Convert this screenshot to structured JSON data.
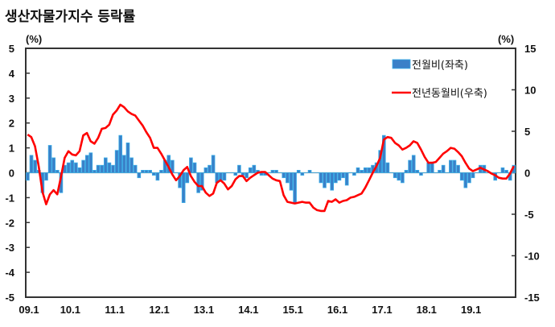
{
  "title": "생산자물가지수 등락률",
  "chart_data": {
    "type": "bar+line",
    "title": "생산자물가지수 등락률",
    "left_unit": "(%)",
    "right_unit": "(%)",
    "left_ylim": [
      -5,
      5
    ],
    "right_ylim": [
      -15,
      15
    ],
    "left_ticks": [
      "5",
      "4",
      "3",
      "2",
      "1",
      "0",
      "-1",
      "-2",
      "-3",
      "-4",
      "-5"
    ],
    "right_ticks": [
      "15",
      "10",
      "5",
      "0",
      "-5",
      "-10",
      "-15"
    ],
    "x_tick_labels": [
      "09.1",
      "10.1",
      "11.1",
      "12.1",
      "13.1",
      "14.1",
      "15.1",
      "16.1",
      "17.1",
      "18.1",
      "19.1"
    ],
    "start": "2009.1",
    "months": 132,
    "legend_position": "top-right",
    "series": [
      {
        "name": "전월비(좌축)",
        "type": "bar",
        "axis": "left",
        "color": "#3a80c8",
        "values": [
          -0.3,
          0.7,
          0.5,
          0.1,
          -0.8,
          -0.3,
          1.1,
          0.6,
          0.1,
          -0.8,
          0.3,
          0.4,
          0.5,
          0.4,
          0.2,
          0.5,
          0.7,
          0.8,
          0.1,
          0.3,
          0.3,
          0.6,
          0.4,
          0.3,
          0.9,
          1.5,
          0.7,
          1.2,
          0.6,
          0.3,
          -0.2,
          0.1,
          0.1,
          0.1,
          -0.1,
          -0.3,
          0.1,
          0.5,
          0.7,
          0.5,
          0.0,
          -0.6,
          -1.2,
          -0.4,
          0.6,
          0.4,
          -0.8,
          -0.7,
          0.2,
          0.3,
          0.7,
          -0.4,
          -0.3,
          -0.3,
          0.0,
          0.0,
          -0.1,
          0.3,
          -0.1,
          -0.2,
          0.2,
          0.3,
          0.1,
          -0.1,
          -0.1,
          0.0,
          0.1,
          0.1,
          0.0,
          -0.2,
          -0.4,
          -0.7,
          -1.2,
          0.1,
          -0.1,
          0.0,
          0.1,
          0.0,
          0.0,
          -0.4,
          -0.6,
          -0.4,
          -0.7,
          -0.4,
          -0.3,
          -0.2,
          -0.5,
          0.0,
          -0.1,
          0.2,
          0.1,
          0.2,
          0.2,
          0.3,
          0.4,
          0.9,
          1.5,
          0.4,
          0.0,
          -0.2,
          -0.3,
          -0.4,
          0.1,
          0.5,
          0.7,
          0.1,
          -0.1,
          0.0,
          0.4,
          0.4,
          0.0,
          0.1,
          0.3,
          0.0,
          0.5,
          0.5,
          0.3,
          -0.3,
          -0.6,
          -0.4,
          -0.2,
          0.0,
          0.3,
          0.3,
          0.0,
          0.0,
          -0.3,
          0.0,
          0.2,
          0.1,
          -0.3,
          0.3
        ]
      },
      {
        "name": "전년동월비(우축)",
        "type": "line",
        "axis": "right",
        "color": "#ff0000",
        "values": [
          4.6,
          4.3,
          3.2,
          0.8,
          -2.3,
          -3.8,
          -2.6,
          -2.1,
          -2.6,
          -0.5,
          1.8,
          2.6,
          2.2,
          2.1,
          2.6,
          4.5,
          4.8,
          3.8,
          3.5,
          4.2,
          5.3,
          5.4,
          5.8,
          7.0,
          7.5,
          8.2,
          7.9,
          7.4,
          7.1,
          6.9,
          6.3,
          5.7,
          4.9,
          4.2,
          3.0,
          3.0,
          2.3,
          1.5,
          0.7,
          -0.2,
          -0.9,
          -0.4,
          0.3,
          0.7,
          -0.4,
          -1.1,
          -1.6,
          -1.6,
          -2.4,
          -2.8,
          -2.5,
          -1.2,
          -0.9,
          -1.3,
          -2.0,
          -1.6,
          -0.8,
          -0.4,
          -0.4,
          -1.0,
          -0.6,
          -0.3,
          0.0,
          0.1,
          0.1,
          -0.3,
          -0.7,
          -0.9,
          -1.0,
          -2.7,
          -3.5,
          -3.6,
          -3.7,
          -3.6,
          -3.5,
          -3.6,
          -3.6,
          -4.2,
          -4.5,
          -4.6,
          -4.6,
          -3.4,
          -3.5,
          -3.2,
          -3.6,
          -3.4,
          -3.3,
          -3.0,
          -2.9,
          -2.7,
          -2.5,
          -1.8,
          -0.9,
          0.0,
          0.8,
          1.8,
          4.0,
          4.3,
          4.2,
          3.6,
          3.3,
          2.8,
          3.0,
          3.3,
          3.8,
          3.6,
          2.8,
          1.9,
          1.2,
          1.2,
          1.3,
          1.8,
          2.3,
          2.6,
          3.0,
          2.9,
          2.5,
          2.0,
          1.2,
          0.5,
          0.2,
          0.4,
          0.6,
          0.4,
          0.2,
          -0.1,
          -0.3,
          -0.6,
          -0.7,
          -0.7,
          -0.1,
          0.8
        ]
      }
    ]
  }
}
